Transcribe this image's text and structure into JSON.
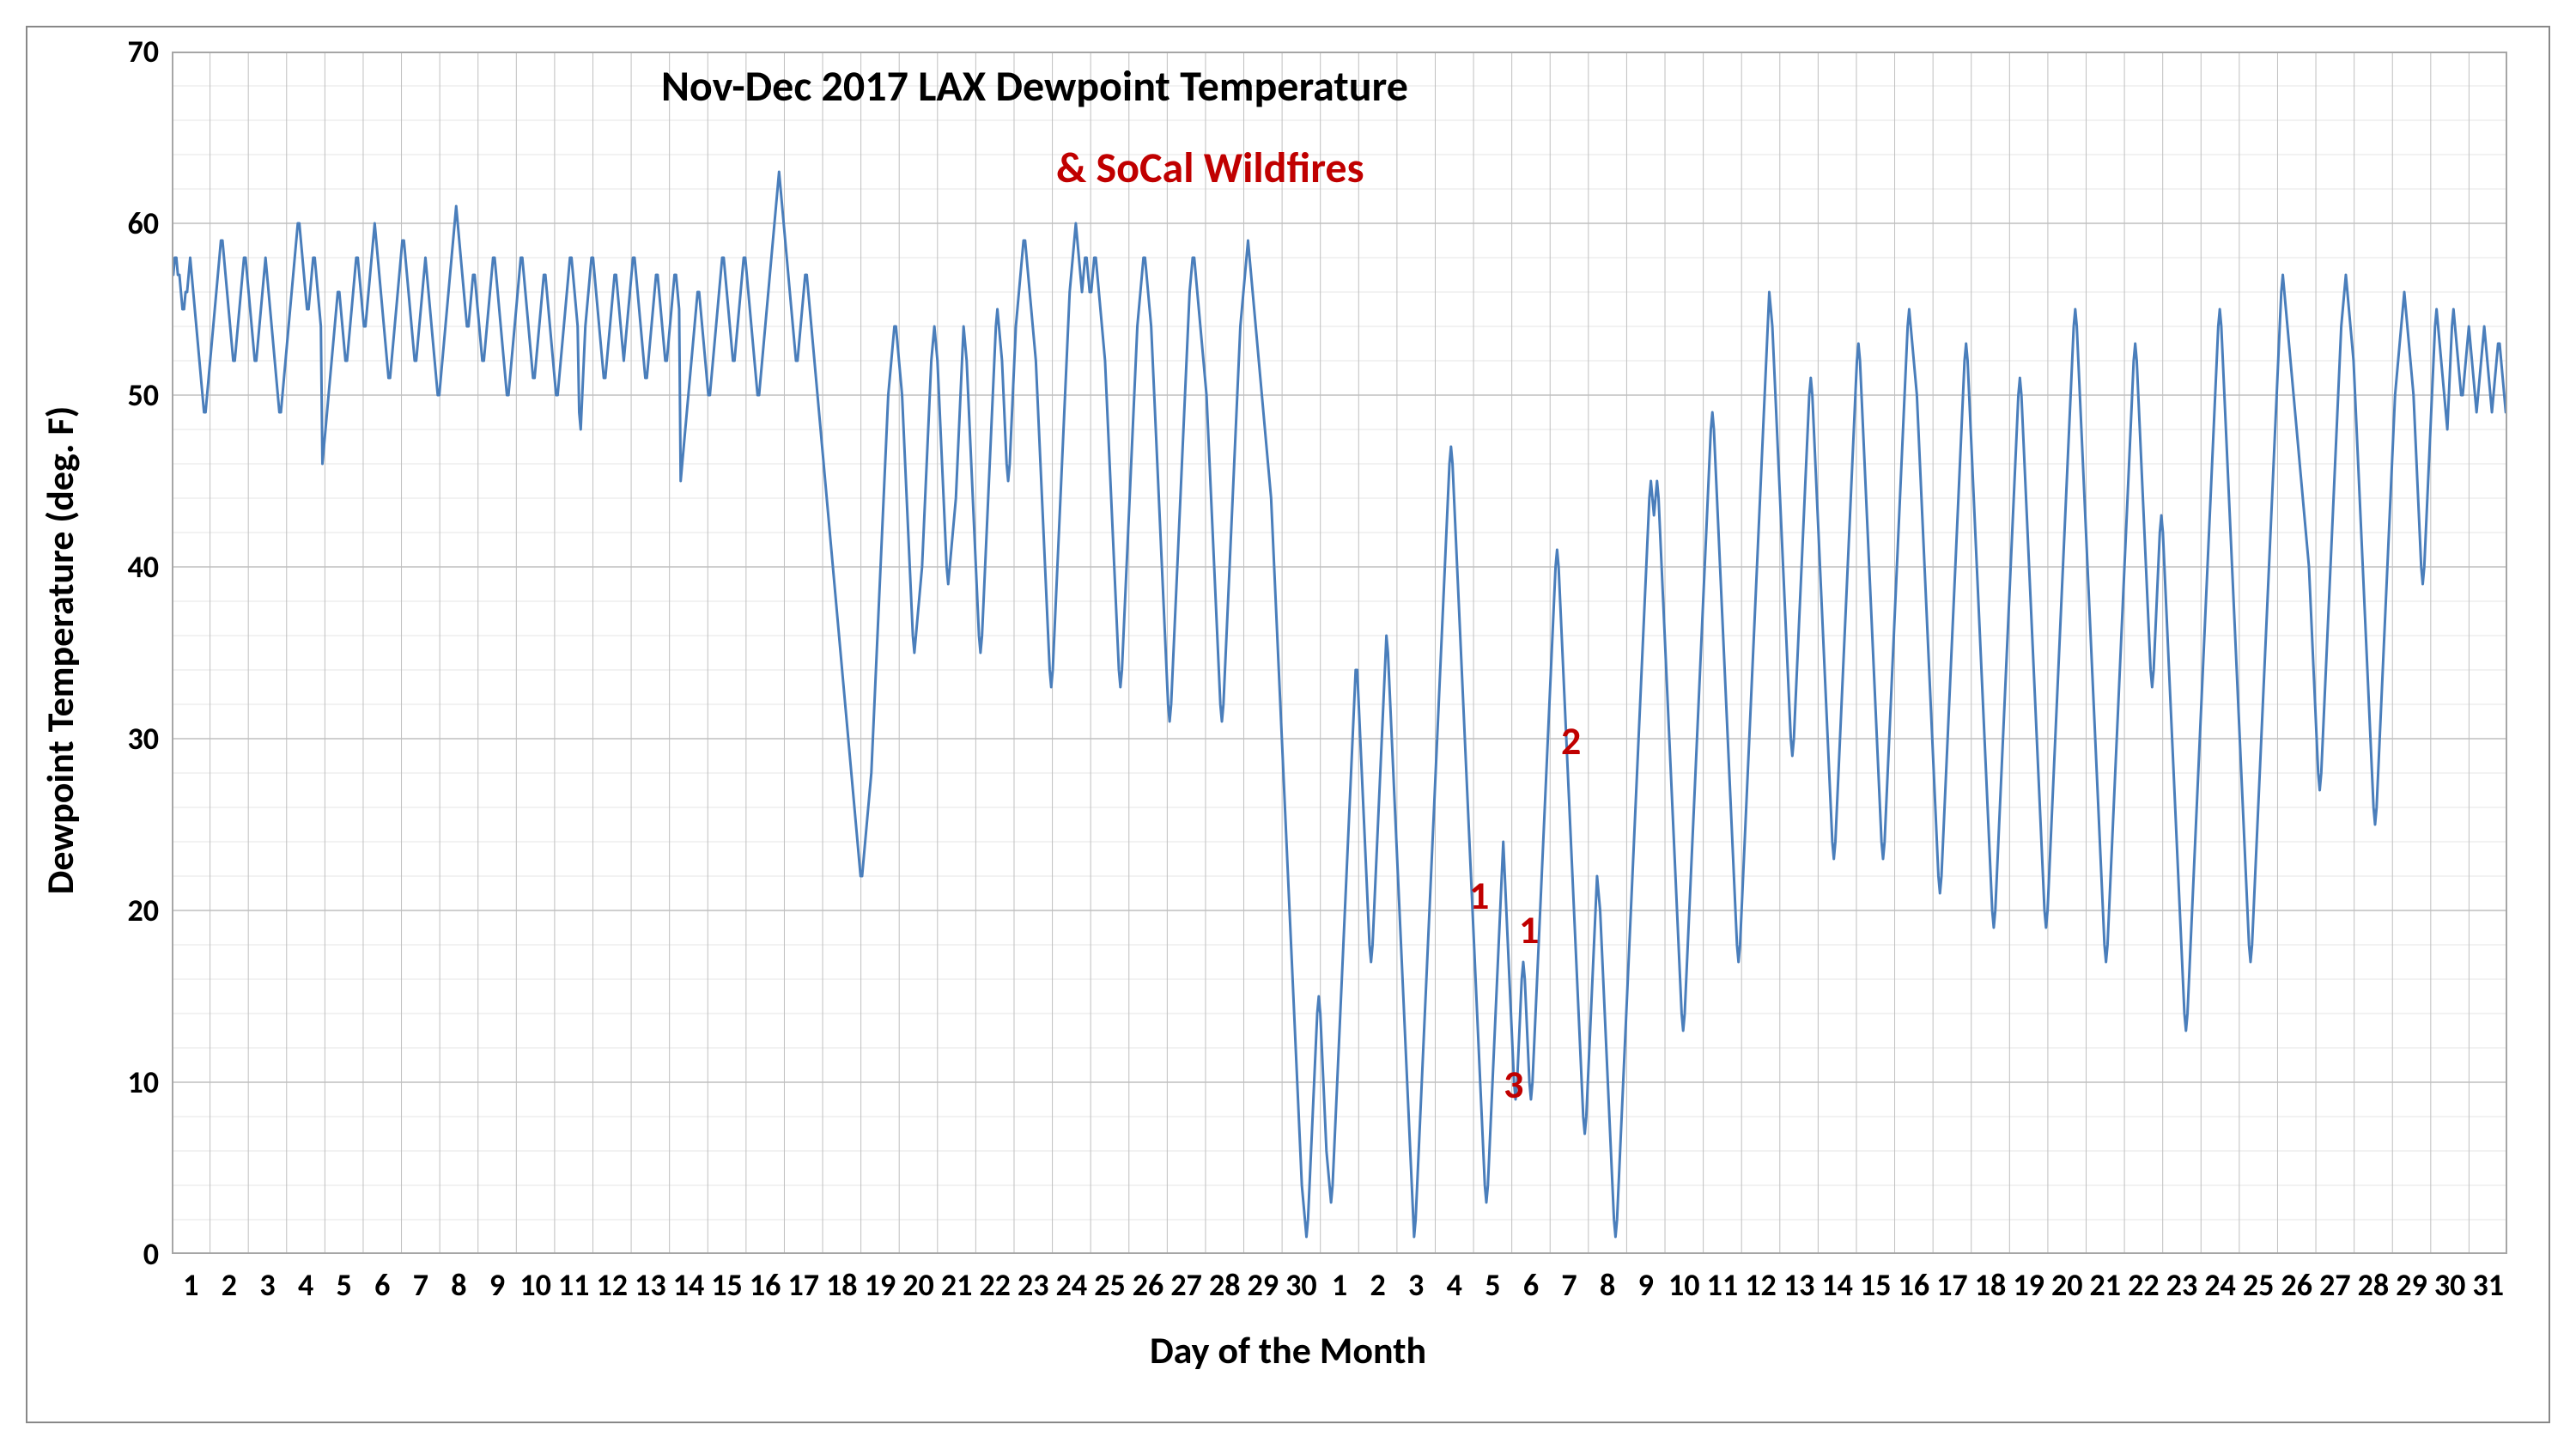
{
  "chart": {
    "type": "line",
    "title": "Nov-Dec 2017 LAX Dewpoint Temperature",
    "subtitle": "& SoCal Wildfires",
    "title_fontsize": 50,
    "subtitle_fontsize": 50,
    "title_color": "#000000",
    "subtitle_color": "#c00000",
    "x_axis_title": "Day of the Month",
    "y_axis_title": "Dewpoint Temperature (deg. F)",
    "axis_title_fontsize": 44,
    "tick_fontsize": 36,
    "ylim": [
      0,
      70
    ],
    "ytick_step": 10,
    "minor_ytick_step": 2,
    "x_categories": [
      "1",
      "2",
      "3",
      "4",
      "5",
      "6",
      "7",
      "8",
      "9",
      "10",
      "11",
      "12",
      "13",
      "14",
      "15",
      "16",
      "17",
      "18",
      "19",
      "20",
      "21",
      "22",
      "23",
      "24",
      "25",
      "26",
      "27",
      "28",
      "29",
      "30",
      "1",
      "2",
      "3",
      "4",
      "5",
      "6",
      "7",
      "8",
      "9",
      "10",
      "11",
      "12",
      "13",
      "14",
      "15",
      "16",
      "17",
      "18",
      "19",
      "20",
      "21",
      "22",
      "23",
      "24",
      "25",
      "26",
      "27",
      "28",
      "29",
      "30",
      "31"
    ],
    "background_color": "#ffffff",
    "grid_major_color": "#bfbfbf",
    "grid_minor_color": "#e6e6e6",
    "border_color": "#888888",
    "line_color": "#4a7ebb",
    "line_width": 3,
    "annotations": [
      {
        "label": "1",
        "x_day_index": 34.2,
        "y": 21,
        "color": "#c00000",
        "fontsize": 46
      },
      {
        "label": "1",
        "x_day_index": 35.5,
        "y": 19,
        "color": "#c00000",
        "fontsize": 46
      },
      {
        "label": "3",
        "x_day_index": 35.1,
        "y": 10,
        "color": "#c00000",
        "fontsize": 46
      },
      {
        "label": "2",
        "x_day_index": 36.6,
        "y": 30,
        "color": "#c00000",
        "fontsize": 46
      }
    ],
    "series": [
      57,
      57,
      58,
      58,
      57,
      57,
      56,
      55,
      55,
      56,
      56,
      57,
      58,
      57,
      56,
      55,
      54,
      53,
      52,
      51,
      50,
      49,
      49,
      50,
      51,
      52,
      53,
      54,
      55,
      56,
      57,
      58,
      59,
      59,
      58,
      57,
      56,
      55,
      54,
      53,
      52,
      52,
      53,
      54,
      55,
      56,
      57,
      58,
      58,
      57,
      56,
      55,
      54,
      53,
      52,
      52,
      53,
      54,
      55,
      56,
      57,
      58,
      57,
      56,
      55,
      54,
      53,
      52,
      51,
      50,
      49,
      49,
      50,
      51,
      52,
      53,
      54,
      55,
      56,
      57,
      58,
      59,
      60,
      60,
      59,
      58,
      57,
      56,
      55,
      55,
      56,
      57,
      58,
      58,
      57,
      56,
      55,
      54,
      46,
      47,
      48,
      49,
      50,
      51,
      52,
      53,
      54,
      55,
      56,
      56,
      55,
      54,
      53,
      52,
      52,
      53,
      54,
      55,
      56,
      57,
      58,
      58,
      57,
      56,
      55,
      54,
      54,
      55,
      56,
      57,
      58,
      59,
      60,
      59,
      58,
      57,
      56,
      55,
      54,
      53,
      52,
      51,
      51,
      52,
      53,
      54,
      55,
      56,
      57,
      58,
      59,
      59,
      58,
      57,
      56,
      55,
      54,
      53,
      52,
      52,
      53,
      54,
      55,
      56,
      57,
      58,
      57,
      56,
      55,
      54,
      53,
      52,
      51,
      50,
      50,
      51,
      52,
      53,
      54,
      55,
      56,
      57,
      58,
      59,
      60,
      61,
      60,
      59,
      58,
      57,
      56,
      55,
      54,
      54,
      55,
      56,
      57,
      57,
      56,
      55,
      54,
      53,
      52,
      52,
      53,
      54,
      55,
      56,
      57,
      58,
      58,
      57,
      56,
      55,
      54,
      53,
      52,
      51,
      50,
      50,
      51,
      52,
      53,
      54,
      55,
      56,
      57,
      58,
      58,
      57,
      56,
      55,
      54,
      53,
      52,
      51,
      51,
      52,
      53,
      54,
      55,
      56,
      57,
      57,
      56,
      55,
      54,
      53,
      52,
      51,
      50,
      50,
      51,
      52,
      53,
      54,
      55,
      56,
      57,
      58,
      58,
      57,
      56,
      55,
      54,
      49,
      48,
      50,
      52,
      54,
      55,
      56,
      57,
      58,
      58,
      57,
      56,
      55,
      54,
      53,
      52,
      51,
      51,
      52,
      53,
      54,
      55,
      56,
      57,
      57,
      56,
      55,
      54,
      53,
      52,
      53,
      54,
      55,
      56,
      57,
      58,
      58,
      57,
      56,
      55,
      54,
      53,
      52,
      51,
      51,
      52,
      53,
      54,
      55,
      56,
      57,
      57,
      56,
      55,
      54,
      53,
      52,
      52,
      53,
      54,
      55,
      56,
      57,
      57,
      56,
      55,
      45,
      46,
      47,
      48,
      49,
      50,
      51,
      52,
      53,
      54,
      55,
      56,
      56,
      55,
      54,
      53,
      52,
      51,
      50,
      50,
      51,
      52,
      53,
      54,
      55,
      56,
      57,
      58,
      58,
      57,
      56,
      55,
      54,
      53,
      52,
      52,
      53,
      54,
      55,
      56,
      57,
      58,
      58,
      57,
      56,
      55,
      54,
      53,
      52,
      51,
      50,
      50,
      51,
      52,
      53,
      54,
      55,
      56,
      57,
      58,
      59,
      60,
      61,
      62,
      63,
      62,
      61,
      60,
      59,
      58,
      57,
      56,
      55,
      54,
      53,
      52,
      52,
      53,
      54,
      55,
      56,
      57,
      57,
      56,
      55,
      54,
      53,
      52,
      51,
      50,
      49,
      48,
      47,
      46,
      45,
      44,
      43,
      42,
      41,
      40,
      39,
      38,
      37,
      36,
      35,
      34,
      33,
      32,
      31,
      30,
      29,
      28,
      27,
      26,
      25,
      24,
      23,
      22,
      22,
      23,
      24,
      25,
      26,
      27,
      28,
      30,
      32,
      34,
      36,
      38,
      40,
      42,
      44,
      46,
      48,
      50,
      51,
      52,
      53,
      54,
      54,
      53,
      52,
      51,
      50,
      48,
      46,
      44,
      42,
      40,
      38,
      36,
      35,
      36,
      37,
      38,
      39,
      40,
      42,
      44,
      46,
      48,
      50,
      52,
      53,
      54,
      53,
      52,
      50,
      48,
      46,
      44,
      42,
      40,
      39,
      40,
      41,
      42,
      43,
      44,
      46,
      48,
      50,
      52,
      54,
      53,
      52,
      50,
      48,
      46,
      44,
      42,
      40,
      38,
      36,
      35,
      36,
      38,
      40,
      42,
      44,
      46,
      48,
      50,
      52,
      54,
      55,
      54,
      53,
      52,
      50,
      48,
      46,
      45,
      46,
      48,
      50,
      52,
      54,
      55,
      56,
      57,
      58,
      59,
      59,
      58,
      57,
      56,
      55,
      54,
      53,
      52,
      50,
      48,
      46,
      44,
      42,
      40,
      38,
      36,
      34,
      33,
      34,
      36,
      38,
      40,
      42,
      44,
      46,
      48,
      50,
      52,
      54,
      56,
      57,
      58,
      59,
      60,
      59,
      58,
      57,
      56,
      57,
      58,
      58,
      57,
      56,
      56,
      57,
      58,
      58,
      57,
      56,
      55,
      54,
      53,
      52,
      50,
      48,
      46,
      44,
      42,
      40,
      38,
      36,
      34,
      33,
      34,
      36,
      38,
      40,
      42,
      44,
      46,
      48,
      50,
      52,
      54,
      55,
      56,
      57,
      58,
      58,
      57,
      56,
      55,
      54,
      52,
      50,
      48,
      46,
      44,
      42,
      40,
      38,
      36,
      34,
      32,
      31,
      32,
      34,
      36,
      38,
      40,
      42,
      44,
      46,
      48,
      50,
      52,
      54,
      56,
      57,
      58,
      58,
      57,
      56,
      55,
      54,
      53,
      52,
      51,
      50,
      48,
      46,
      44,
      42,
      40,
      38,
      36,
      34,
      32,
      31,
      32,
      34,
      36,
      38,
      40,
      42,
      44,
      46,
      48,
      50,
      52,
      54,
      55,
      56,
      57,
      58,
      59,
      58,
      57,
      56,
      55,
      54,
      53,
      52,
      51,
      50,
      49,
      48,
      47,
      46,
      45,
      44,
      42,
      40,
      38,
      36,
      34,
      32,
      30,
      28,
      26,
      24,
      22,
      20,
      18,
      16,
      14,
      12,
      10,
      8,
      6,
      4,
      3,
      2,
      1,
      2,
      4,
      6,
      8,
      10,
      12,
      14,
      15,
      14,
      12,
      10,
      8,
      6,
      5,
      4,
      3,
      4,
      6,
      8,
      10,
      12,
      14,
      16,
      18,
      20,
      22,
      24,
      26,
      28,
      30,
      32,
      34,
      34,
      32,
      30,
      28,
      26,
      24,
      22,
      20,
      18,
      17,
      18,
      20,
      22,
      24,
      26,
      28,
      30,
      32,
      34,
      36,
      35,
      33,
      31,
      29,
      27,
      25,
      23,
      21,
      19,
      17,
      15,
      13,
      11,
      9,
      7,
      5,
      3,
      1,
      2,
      4,
      6,
      8,
      10,
      12,
      14,
      16,
      18,
      20,
      22,
      24,
      26,
      28,
      30,
      32,
      34,
      36,
      38,
      40,
      42,
      44,
      46,
      47,
      46,
      44,
      42,
      40,
      38,
      36,
      34,
      32,
      30,
      28,
      26,
      24,
      22,
      20,
      18,
      16,
      14,
      12,
      10,
      8,
      6,
      4,
      3,
      4,
      6,
      8,
      10,
      12,
      14,
      16,
      18,
      20,
      22,
      24,
      22,
      20,
      18,
      16,
      14,
      12,
      10,
      9,
      10,
      12,
      14,
      16,
      17,
      16,
      14,
      12,
      10,
      9,
      10,
      12,
      14,
      16,
      18,
      20,
      22,
      24,
      26,
      28,
      30,
      32,
      34,
      36,
      38,
      40,
      41,
      40,
      38,
      36,
      34,
      32,
      30,
      28,
      26,
      24,
      22,
      20,
      18,
      16,
      14,
      12,
      10,
      8,
      7,
      8,
      10,
      12,
      14,
      16,
      18,
      20,
      22,
      21,
      20,
      18,
      16,
      14,
      12,
      10,
      8,
      6,
      4,
      2,
      1,
      2,
      4,
      6,
      8,
      10,
      12,
      14,
      16,
      18,
      20,
      22,
      24,
      26,
      28,
      30,
      32,
      34,
      36,
      38,
      40,
      42,
      44,
      45,
      44,
      43,
      44,
      45,
      44,
      42,
      40,
      38,
      36,
      34,
      32,
      30,
      28,
      26,
      24,
      22,
      20,
      18,
      16,
      14,
      13,
      14,
      16,
      18,
      20,
      22,
      24,
      26,
      28,
      30,
      32,
      34,
      36,
      38,
      40,
      42,
      44,
      46,
      48,
      49,
      48,
      46,
      44,
      42,
      40,
      38,
      36,
      34,
      32,
      30,
      28,
      26,
      24,
      22,
      20,
      18,
      17,
      18,
      20,
      22,
      24,
      26,
      28,
      30,
      32,
      34,
      36,
      38,
      40,
      42,
      44,
      46,
      48,
      50,
      52,
      54,
      56,
      55,
      54,
      52,
      50,
      48,
      46,
      44,
      42,
      40,
      38,
      36,
      34,
      32,
      30,
      29,
      30,
      32,
      34,
      36,
      38,
      40,
      42,
      44,
      46,
      48,
      50,
      51,
      50,
      48,
      46,
      44,
      42,
      40,
      38,
      36,
      34,
      32,
      30,
      28,
      26,
      24,
      23,
      24,
      26,
      28,
      30,
      32,
      34,
      36,
      38,
      40,
      42,
      44,
      46,
      48,
      50,
      52,
      53,
      52,
      50,
      48,
      46,
      44,
      42,
      40,
      38,
      36,
      34,
      32,
      30,
      28,
      26,
      24,
      23,
      24,
      26,
      28,
      30,
      32,
      34,
      36,
      38,
      40,
      42,
      44,
      46,
      48,
      50,
      52,
      54,
      55,
      54,
      53,
      52,
      51,
      50,
      48,
      46,
      44,
      42,
      40,
      38,
      36,
      34,
      32,
      30,
      28,
      26,
      24,
      22,
      21,
      22,
      24,
      26,
      28,
      30,
      32,
      34,
      36,
      38,
      40,
      42,
      44,
      46,
      48,
      50,
      52,
      53,
      52,
      50,
      48,
      46,
      44,
      42,
      40,
      38,
      36,
      34,
      32,
      30,
      28,
      26,
      24,
      22,
      20,
      19,
      20,
      22,
      24,
      26,
      28,
      30,
      32,
      34,
      36,
      38,
      40,
      42,
      44,
      46,
      48,
      50,
      51,
      50,
      48,
      46,
      44,
      42,
      40,
      38,
      36,
      34,
      32,
      30,
      28,
      26,
      24,
      22,
      20,
      19,
      20,
      22,
      24,
      26,
      28,
      30,
      32,
      34,
      36,
      38,
      40,
      42,
      44,
      46,
      48,
      50,
      52,
      54,
      55,
      54,
      52,
      50,
      48,
      46,
      44,
      42,
      40,
      38,
      36,
      34,
      32,
      30,
      28,
      26,
      24,
      22,
      20,
      18,
      17,
      18,
      20,
      22,
      24,
      26,
      28,
      30,
      32,
      34,
      36,
      38,
      40,
      42,
      44,
      46,
      48,
      50,
      52,
      53,
      52,
      50,
      48,
      46,
      44,
      42,
      40,
      38,
      36,
      34,
      33,
      34,
      36,
      38,
      40,
      42,
      43,
      42,
      40,
      38,
      36,
      34,
      32,
      30,
      28,
      26,
      24,
      22,
      20,
      18,
      16,
      14,
      13,
      14,
      16,
      18,
      20,
      22,
      24,
      26,
      28,
      30,
      32,
      34,
      36,
      38,
      40,
      42,
      44,
      46,
      48,
      50,
      52,
      54,
      55,
      54,
      52,
      50,
      48,
      46,
      44,
      42,
      40,
      38,
      36,
      34,
      32,
      30,
      28,
      26,
      24,
      22,
      20,
      18,
      17,
      18,
      20,
      22,
      24,
      26,
      28,
      30,
      32,
      34,
      36,
      38,
      40,
      42,
      44,
      46,
      48,
      50,
      52,
      54,
      56,
      57,
      56,
      55,
      54,
      53,
      52,
      51,
      50,
      49,
      48,
      47,
      46,
      45,
      44,
      43,
      42,
      41,
      40,
      38,
      36,
      34,
      32,
      30,
      28,
      27,
      28,
      30,
      32,
      34,
      36,
      38,
      40,
      42,
      44,
      46,
      48,
      50,
      52,
      54,
      55,
      56,
      57,
      56,
      55,
      54,
      53,
      52,
      50,
      48,
      46,
      44,
      42,
      40,
      38,
      36,
      34,
      32,
      30,
      28,
      26,
      25,
      26,
      28,
      30,
      32,
      34,
      36,
      38,
      40,
      42,
      44,
      46,
      48,
      50,
      51,
      52,
      53,
      54,
      55,
      56,
      55,
      54,
      53,
      52,
      51,
      50,
      48,
      46,
      44,
      42,
      40,
      39,
      40,
      42,
      44,
      46,
      48,
      50,
      52,
      54,
      55,
      54,
      53,
      52,
      51,
      50,
      49,
      48,
      50,
      52,
      54,
      55,
      54,
      53,
      52,
      51,
      50,
      50,
      51,
      52,
      53,
      54,
      53,
      52,
      51,
      50,
      49,
      50,
      51,
      52,
      53,
      54,
      53,
      52,
      51,
      50,
      49,
      50,
      51,
      52,
      53,
      53,
      52,
      51,
      50,
      49,
      50
    ]
  }
}
